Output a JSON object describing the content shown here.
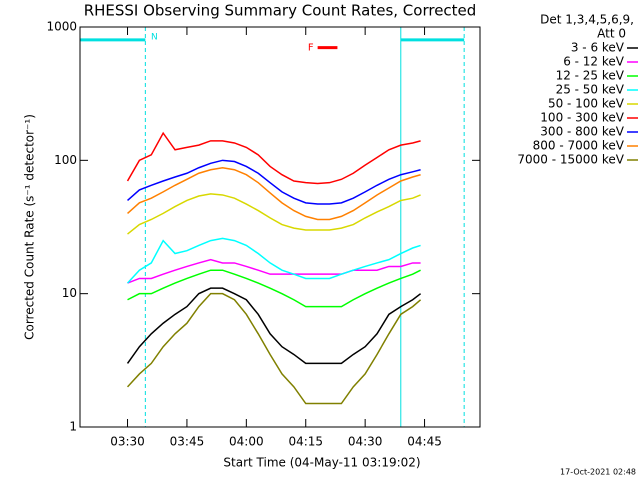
{
  "chart_data": {
    "type": "line",
    "title": "RHESSI Observing Summary Count Rates, Corrected",
    "xlabel": "Start Time (04-May-11 03:19:02)",
    "ylabel": "Corrected Count Rate (s⁻¹ detector⁻¹)",
    "footer": "17-Oct-2021 02:48",
    "legend_header": [
      "Det 1,3,4,5,6,9,",
      "Att 0"
    ],
    "log_y": true,
    "xlim": [
      198,
      299
    ],
    "ylim": [
      1,
      1000
    ],
    "xticks": [
      {
        "value": 210,
        "label": "03:30"
      },
      {
        "value": 225,
        "label": "03:45"
      },
      {
        "value": 240,
        "label": "04:00"
      },
      {
        "value": 255,
        "label": "04:15"
      },
      {
        "value": 270,
        "label": "04:30"
      },
      {
        "value": 285,
        "label": "04:45"
      }
    ],
    "yticks": [
      1,
      10,
      100,
      1000
    ],
    "x": [
      210,
      213,
      216,
      219,
      222,
      225,
      228,
      231,
      234,
      237,
      240,
      243,
      246,
      249,
      252,
      255,
      258,
      261,
      264,
      267,
      270,
      273,
      276,
      279,
      282,
      284
    ],
    "series": [
      {
        "name": "3 - 6 keV",
        "color": "#000000",
        "values": [
          3,
          4,
          5,
          6,
          7,
          8,
          10,
          11,
          11,
          10,
          9,
          7,
          5,
          4,
          3.5,
          3,
          3,
          3,
          3,
          3.5,
          4,
          5,
          7,
          8,
          9,
          10
        ]
      },
      {
        "name": "6 - 12 keV",
        "color": "#ff00ff",
        "values": [
          12,
          13,
          13,
          14,
          15,
          16,
          17,
          18,
          17,
          17,
          16,
          15,
          14,
          14,
          14,
          14,
          14,
          14,
          14,
          15,
          15,
          15,
          16,
          16,
          17,
          17
        ]
      },
      {
        "name": "12 - 25 keV",
        "color": "#00ff00",
        "values": [
          9,
          10,
          10,
          11,
          12,
          13,
          14,
          15,
          15,
          14,
          13,
          12,
          11,
          10,
          9,
          8,
          8,
          8,
          8,
          9,
          10,
          11,
          12,
          13,
          14,
          15
        ]
      },
      {
        "name": "25 - 50 keV",
        "color": "#00ffff",
        "values": [
          12,
          15,
          17,
          25,
          20,
          21,
          23,
          25,
          26,
          25,
          23,
          20,
          17,
          15,
          14,
          13,
          13,
          13,
          14,
          15,
          16,
          17,
          18,
          20,
          22,
          23
        ]
      },
      {
        "name": "50 - 100 keV",
        "color": "#d8d800",
        "values": [
          28,
          33,
          36,
          40,
          45,
          50,
          54,
          56,
          55,
          52,
          47,
          42,
          37,
          33,
          31,
          30,
          30,
          30,
          31,
          33,
          37,
          41,
          45,
          50,
          52,
          55
        ]
      },
      {
        "name": "100 - 300 keV",
        "color": "#ff0000",
        "values": [
          70,
          100,
          110,
          160,
          120,
          125,
          130,
          140,
          140,
          135,
          125,
          110,
          90,
          78,
          70,
          68,
          67,
          68,
          72,
          80,
          92,
          105,
          120,
          130,
          135,
          140
        ]
      },
      {
        "name": "300 - 800 keV",
        "color": "#0000ff",
        "values": [
          50,
          60,
          65,
          70,
          75,
          80,
          88,
          95,
          100,
          98,
          90,
          80,
          68,
          58,
          52,
          48,
          47,
          47,
          48,
          52,
          58,
          65,
          72,
          78,
          82,
          85
        ]
      },
      {
        "name": "800 - 7000 keV",
        "color": "#ff8000",
        "values": [
          40,
          48,
          52,
          58,
          65,
          72,
          80,
          85,
          88,
          85,
          78,
          68,
          57,
          48,
          42,
          38,
          36,
          36,
          38,
          42,
          48,
          55,
          62,
          70,
          75,
          78
        ]
      },
      {
        "name": "7000 - 15000 keV",
        "color": "#808000",
        "values": [
          2,
          2.5,
          3,
          4,
          5,
          6,
          8,
          10,
          10,
          9,
          7,
          5,
          3.5,
          2.5,
          2,
          1.5,
          1.5,
          1.5,
          1.5,
          2,
          2.5,
          3.5,
          5,
          7,
          8,
          9
        ]
      }
    ],
    "night_intervals": [
      [
        198,
        214.5
      ],
      [
        279,
        295
      ]
    ],
    "night_level": 800,
    "night_color": "#00e0e0",
    "night_label": "N",
    "flag": {
      "label": "F",
      "x": [
        258,
        263
      ],
      "y": 700,
      "color": "#ff0000"
    }
  }
}
